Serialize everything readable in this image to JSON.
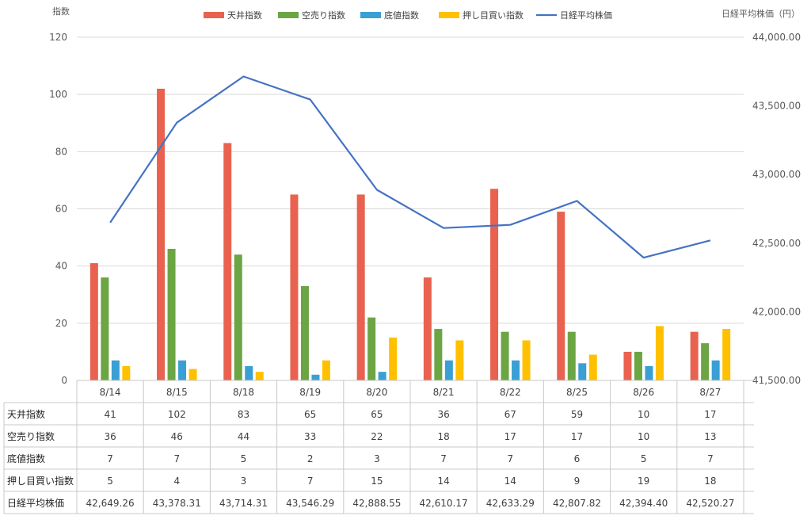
{
  "chart_data": {
    "type": "bar",
    "categories": [
      "8/14",
      "8/15",
      "8/18",
      "8/19",
      "8/20",
      "8/21",
      "8/22",
      "8/25",
      "8/26",
      "8/27"
    ],
    "series": [
      {
        "name": "天井指数",
        "kind": "bar",
        "axis": "left",
        "color": "#E8624F",
        "values": [
          41,
          102,
          83,
          65,
          65,
          36,
          67,
          59,
          10,
          17
        ]
      },
      {
        "name": "空売り指数",
        "kind": "bar",
        "axis": "left",
        "color": "#6BA544",
        "values": [
          36,
          46,
          44,
          33,
          22,
          18,
          17,
          17,
          10,
          13
        ]
      },
      {
        "name": "底値指数",
        "kind": "bar",
        "axis": "left",
        "color": "#3A9FD5",
        "values": [
          7,
          7,
          5,
          2,
          3,
          7,
          7,
          6,
          5,
          7
        ]
      },
      {
        "name": "押し目買い指数",
        "kind": "bar",
        "axis": "left",
        "color": "#FFC000",
        "values": [
          5,
          4,
          3,
          7,
          15,
          14,
          14,
          9,
          19,
          18
        ]
      },
      {
        "name": "日経平均株価",
        "kind": "line",
        "axis": "right",
        "color": "#4472C4",
        "values": [
          42649.26,
          43378.31,
          43714.31,
          43546.29,
          42888.55,
          42610.17,
          42633.29,
          42807.82,
          42394.4,
          42520.27
        ]
      }
    ],
    "ylabel": "指数",
    "y2label": "日経平均株価（円）",
    "ylim": [
      0,
      120
    ],
    "y2lim": [
      41500,
      44000
    ],
    "yticks": [
      "0",
      "20",
      "40",
      "60",
      "80",
      "100",
      "120"
    ],
    "y2ticks": [
      "41,500.00",
      "42,000.00",
      "42,500.00",
      "43,000.00",
      "43,500.00",
      "44,000.00"
    ],
    "grid": true,
    "legend": "top",
    "data_table": {
      "rows": [
        {
          "label": "天井指数",
          "values": [
            "41",
            "102",
            "83",
            "65",
            "65",
            "36",
            "67",
            "59",
            "10",
            "17"
          ]
        },
        {
          "label": "空売り指数",
          "values": [
            "36",
            "46",
            "44",
            "33",
            "22",
            "18",
            "17",
            "17",
            "10",
            "13"
          ]
        },
        {
          "label": "底値指数",
          "values": [
            "7",
            "7",
            "5",
            "2",
            "3",
            "7",
            "7",
            "6",
            "5",
            "7"
          ]
        },
        {
          "label": "押し目買い指数",
          "values": [
            "5",
            "4",
            "3",
            "7",
            "15",
            "14",
            "14",
            "9",
            "19",
            "18"
          ]
        },
        {
          "label": "日経平均株価",
          "values": [
            "42,649.26",
            "43,378.31",
            "43,714.31",
            "43,546.29",
            "42,888.55",
            "42,610.17",
            "42,633.29",
            "42,807.82",
            "42,394.40",
            "42,520.27"
          ]
        }
      ]
    }
  }
}
